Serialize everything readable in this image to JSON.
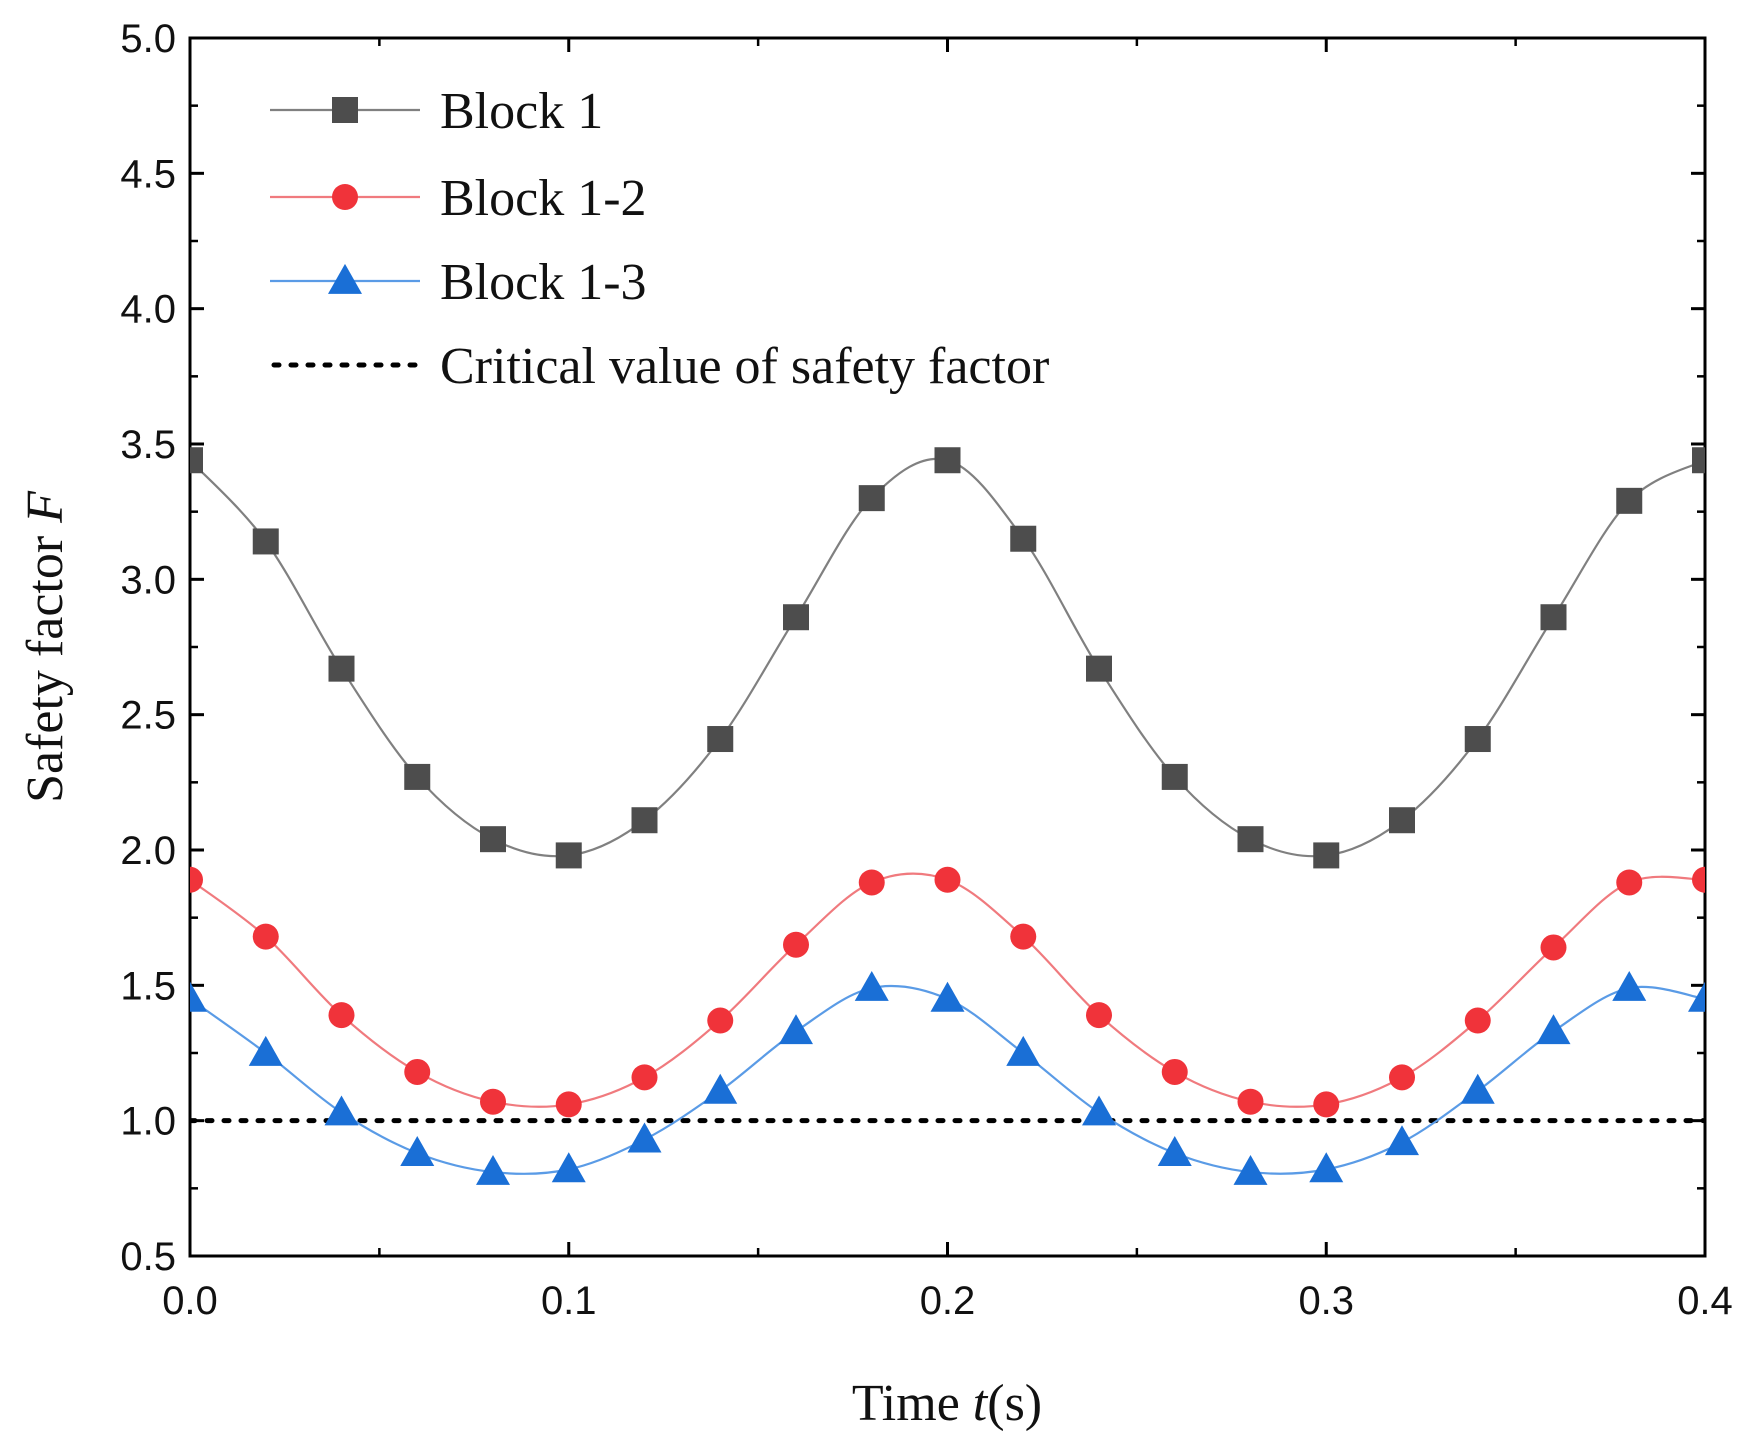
{
  "chart_data": {
    "type": "line",
    "title": "",
    "xlabel": {
      "prefix": "Time ",
      "var": "t",
      "suffix": "(s)"
    },
    "ylabel": {
      "prefix": "Safety factor ",
      "var": "F"
    },
    "xlim": [
      0.0,
      0.4
    ],
    "ylim": [
      0.5,
      5.0
    ],
    "xticks": [
      "0.0",
      "0.1",
      "0.2",
      "0.3",
      "0.4"
    ],
    "yticks": [
      "0.5",
      "1.0",
      "1.5",
      "2.0",
      "2.5",
      "3.0",
      "3.5",
      "4.0",
      "4.5",
      "5.0"
    ],
    "xtick_values": [
      0.0,
      0.1,
      0.2,
      0.3,
      0.4
    ],
    "ytick_values": [
      0.5,
      1.0,
      1.5,
      2.0,
      2.5,
      3.0,
      3.5,
      4.0,
      4.5,
      5.0
    ],
    "x_minor_ticks": [
      0.05,
      0.15,
      0.25,
      0.35
    ],
    "y_minor_ticks": [
      0.75,
      1.25,
      1.75,
      2.25,
      2.75,
      3.25,
      3.75,
      4.25,
      4.75
    ],
    "grid": false,
    "legend_position": "top-left",
    "x": [
      0.0,
      0.02,
      0.04,
      0.06,
      0.08,
      0.1,
      0.12,
      0.14,
      0.16,
      0.18,
      0.2,
      0.22,
      0.24,
      0.26,
      0.28,
      0.3,
      0.32,
      0.34,
      0.36,
      0.38,
      0.4
    ],
    "series": [
      {
        "name": "Block 1",
        "marker": "square",
        "color": "#4d4d4d",
        "line_color": "#808080",
        "values": [
          3.44,
          3.14,
          2.67,
          2.27,
          2.04,
          1.98,
          2.11,
          2.41,
          2.86,
          3.3,
          3.44,
          3.15,
          2.67,
          2.27,
          2.04,
          1.98,
          2.11,
          2.41,
          2.86,
          3.29,
          3.44
        ]
      },
      {
        "name": "Block 1-2",
        "marker": "circle",
        "color": "#f0333a",
        "line_color": "#f07a7e",
        "values": [
          1.89,
          1.68,
          1.39,
          1.18,
          1.07,
          1.06,
          1.16,
          1.37,
          1.65,
          1.88,
          1.89,
          1.68,
          1.39,
          1.18,
          1.07,
          1.06,
          1.16,
          1.37,
          1.64,
          1.88,
          1.89
        ]
      },
      {
        "name": "Block 1-3",
        "marker": "triangle",
        "color": "#1a6fd6",
        "line_color": "#5a9be6",
        "values": [
          1.45,
          1.25,
          1.03,
          0.88,
          0.81,
          0.82,
          0.93,
          1.11,
          1.33,
          1.49,
          1.45,
          1.25,
          1.03,
          0.88,
          0.81,
          0.82,
          0.92,
          1.11,
          1.33,
          1.49,
          1.45
        ]
      }
    ],
    "reference_line": {
      "name": "Critical value of safety factor",
      "y": 1.0,
      "style": "dotted",
      "color": "#000000"
    }
  }
}
